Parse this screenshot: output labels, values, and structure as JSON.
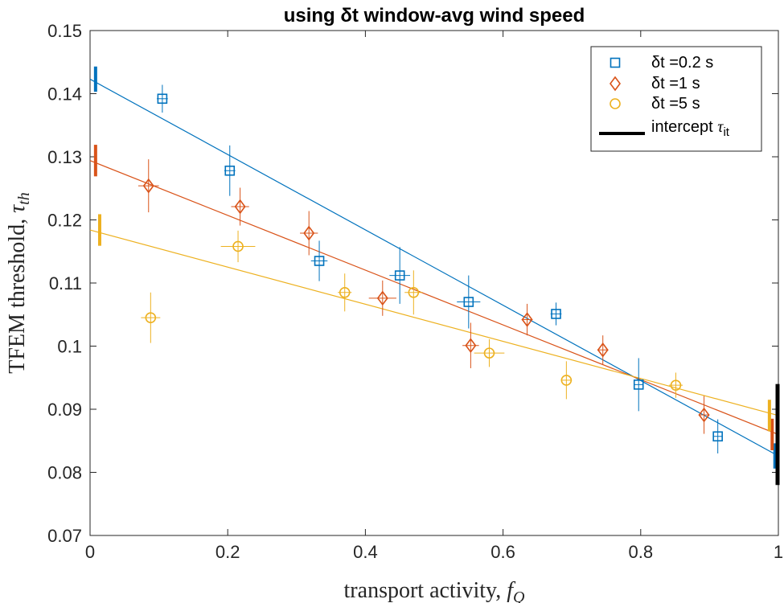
{
  "chart_data": {
    "type": "scatter",
    "title": "using δt window-avg wind speed",
    "xlabel": "transport activity, f_Q",
    "ylabel": "TFEM threshold, τ_th",
    "xlim": [
      0,
      1
    ],
    "ylim": [
      0.07,
      0.15
    ],
    "xticks": [
      "0",
      "0.2",
      "0.4",
      "0.6",
      "0.8",
      "1"
    ],
    "yticks": [
      "0.07",
      "0.08",
      "0.09",
      "0.1",
      "0.11",
      "0.12",
      "0.13",
      "0.14",
      "0.15"
    ],
    "legend_position": "top-right",
    "legend_intercept_label": "intercept τ_it",
    "series": [
      {
        "name": "δt =0.2 s",
        "marker": "square",
        "color": "#0072BD",
        "points": [
          {
            "x": 0.105,
            "y": 0.1392,
            "xerr": 0.008,
            "yerr": 0.0022
          },
          {
            "x": 0.203,
            "y": 0.1278,
            "xerr": 0.008,
            "yerr": 0.004
          },
          {
            "x": 0.333,
            "y": 0.1135,
            "xerr": 0.012,
            "yerr": 0.0032
          },
          {
            "x": 0.45,
            "y": 0.1112,
            "xerr": 0.015,
            "yerr": 0.0045
          },
          {
            "x": 0.55,
            "y": 0.107,
            "xerr": 0.017,
            "yerr": 0.0042
          },
          {
            "x": 0.677,
            "y": 0.1051,
            "xerr": 0.008,
            "yerr": 0.0018
          },
          {
            "x": 0.797,
            "y": 0.0939,
            "xerr": 0.006,
            "yerr": 0.0042
          },
          {
            "x": 0.912,
            "y": 0.0857,
            "xerr": 0.006,
            "yerr": 0.0027
          }
        ],
        "fit": {
          "x": [
            0,
            1
          ],
          "y": [
            0.1423,
            0.0826
          ]
        },
        "intercepts": [
          {
            "x": 0.008,
            "y": 0.1423,
            "err": 0.002
          },
          {
            "x": 0.995,
            "y": 0.0826,
            "err": 0.002
          }
        ]
      },
      {
        "name": "δt =1 s",
        "marker": "diamond",
        "color": "#D95319",
        "points": [
          {
            "x": 0.085,
            "y": 0.1254,
            "xerr": 0.015,
            "yerr": 0.0042
          },
          {
            "x": 0.218,
            "y": 0.1221,
            "xerr": 0.013,
            "yerr": 0.003
          },
          {
            "x": 0.318,
            "y": 0.1179,
            "xerr": 0.013,
            "yerr": 0.0035
          },
          {
            "x": 0.425,
            "y": 0.1076,
            "xerr": 0.02,
            "yerr": 0.0028
          },
          {
            "x": 0.553,
            "y": 0.1001,
            "xerr": 0.012,
            "yerr": 0.0036
          },
          {
            "x": 0.635,
            "y": 0.1042,
            "xerr": 0.008,
            "yerr": 0.0025
          },
          {
            "x": 0.745,
            "y": 0.0994,
            "xerr": 0.008,
            "yerr": 0.0023
          },
          {
            "x": 0.892,
            "y": 0.0891,
            "xerr": 0.008,
            "yerr": 0.003
          }
        ],
        "fit": {
          "x": [
            0,
            1
          ],
          "y": [
            0.1294,
            0.086
          ]
        },
        "intercepts": [
          {
            "x": 0.008,
            "y": 0.1294,
            "err": 0.0025
          },
          {
            "x": 0.991,
            "y": 0.086,
            "err": 0.0025
          }
        ]
      },
      {
        "name": "δt =5 s",
        "marker": "circle",
        "color": "#EDB120",
        "points": [
          {
            "x": 0.088,
            "y": 0.1045,
            "xerr": 0.014,
            "yerr": 0.004
          },
          {
            "x": 0.215,
            "y": 0.1158,
            "xerr": 0.025,
            "yerr": 0.0025
          },
          {
            "x": 0.37,
            "y": 0.1085,
            "xerr": 0.01,
            "yerr": 0.003
          },
          {
            "x": 0.47,
            "y": 0.1085,
            "xerr": 0.013,
            "yerr": 0.0035
          },
          {
            "x": 0.58,
            "y": 0.0989,
            "xerr": 0.022,
            "yerr": 0.0022
          },
          {
            "x": 0.692,
            "y": 0.0946,
            "xerr": 0.008,
            "yerr": 0.003
          },
          {
            "x": 0.851,
            "y": 0.0938,
            "xerr": 0.01,
            "yerr": 0.002
          }
        ],
        "fit": {
          "x": [
            0,
            1
          ],
          "y": [
            0.1184,
            0.089
          ]
        },
        "intercepts": [
          {
            "x": 0.014,
            "y": 0.1184,
            "err": 0.0025
          },
          {
            "x": 0.987,
            "y": 0.089,
            "err": 0.0025
          }
        ]
      }
    ],
    "intercept_bar": {
      "x": 1.0,
      "y": 0.086,
      "err": 0.008,
      "color": "#000000"
    }
  }
}
